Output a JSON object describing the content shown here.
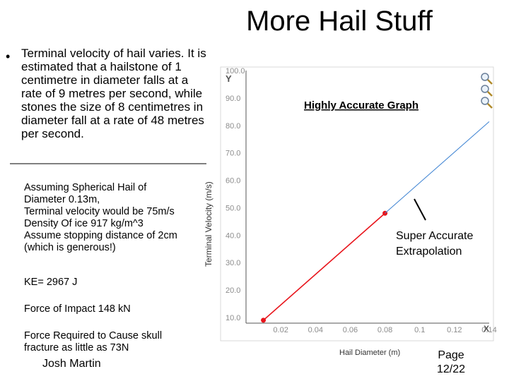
{
  "slide": {
    "title": "More Hail Stuff",
    "bullet": "Terminal velocity of hail varies. It is estimated that a hailstone of 1 centimetre in diameter falls at a rate of 9 metres per second, while stones the size of 8 centimetres in diameter fall at a rate of 48 metres per second.",
    "assumptions": [
      "Assuming Spherical Hail of",
      "Diameter 0.13m,",
      "Terminal velocity would be 75m/s",
      "Density  Of ice 917 kg/m^3",
      "Assume stopping distance of 2cm",
      "(which is generous!)"
    ],
    "ke": "KE= 2967 J",
    "impact": "Force of Impact 148 kN",
    "skull": [
      "Force Required to Cause skull",
      "fracture as little as 73N"
    ],
    "author": "Josh Martin",
    "page": [
      "Page",
      "12/22"
    ],
    "graph_caption": "Highly Accurate Graph",
    "extrapolation_caption": [
      "Super Accurate",
      "Extrapolation"
    ]
  },
  "chart_data": {
    "type": "line",
    "xlabel": "Hail Diameter (m)",
    "ylabel": "Terminal Velocity (m/s)",
    "x_axis_letter": "X",
    "y_axis_letter": "Y",
    "xlim": [
      0,
      0.14
    ],
    "ylim": [
      10,
      100
    ],
    "x_ticks": [
      "0.02",
      "0.04",
      "0.06",
      "0.08",
      "0.1",
      "0.12",
      "0.14"
    ],
    "y_ticks": [
      "10.0",
      "20.0",
      "30.0",
      "40.0",
      "50.0",
      "60.0",
      "70.0",
      "80.0",
      "90.0",
      "100.0"
    ],
    "series": [
      {
        "x": [
          0.01,
          0.08
        ],
        "y": [
          9,
          48
        ],
        "color": "#e8141b",
        "marker": "dot"
      },
      {
        "x": [
          0.08,
          0.14
        ],
        "y": [
          48,
          81.4
        ],
        "color": "#3c82d2",
        "marker": "none"
      }
    ]
  },
  "colors": {
    "axis_text": "#8c8c8c",
    "data_line": "#e8141b",
    "extrapolation_line": "#3c82d2"
  },
  "icons": [
    "zoom-in-icon",
    "zoom-out-icon",
    "zoom-reset-icon"
  ]
}
